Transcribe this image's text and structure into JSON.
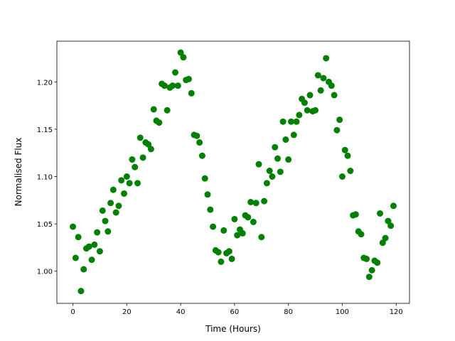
{
  "chart_data": {
    "type": "scatter",
    "x_label": "Time (Hours)",
    "y_label": "Normalised Flux",
    "x": [
      0,
      1,
      2,
      3,
      4,
      5,
      6,
      7,
      8,
      9,
      10,
      11,
      12,
      13,
      14,
      15,
      16,
      17,
      18,
      19,
      20,
      21,
      22,
      23,
      24,
      25,
      26,
      27,
      28,
      29,
      30,
      31,
      32,
      33,
      34,
      35,
      36,
      37,
      38,
      39,
      40,
      41,
      42,
      43,
      44,
      45,
      46,
      47,
      48,
      49,
      50,
      51,
      52,
      53,
      54,
      55,
      56,
      57,
      58,
      59,
      60,
      61,
      62,
      63,
      64,
      65,
      66,
      67,
      68,
      69,
      70,
      71,
      72,
      73,
      74,
      75,
      76,
      77,
      78,
      79,
      80,
      81,
      82,
      83,
      84,
      85,
      86,
      87,
      88,
      89,
      90,
      91,
      92,
      93,
      94,
      95,
      96,
      97,
      98,
      99,
      100,
      101,
      102,
      103,
      104,
      105,
      106,
      107,
      108,
      109,
      110,
      111,
      112,
      113,
      114,
      115,
      116,
      117,
      118,
      119
    ],
    "values": [
      1.047,
      1.014,
      1.036,
      0.979,
      1.002,
      1.024,
      1.026,
      1.012,
      1.028,
      1.041,
      1.021,
      1.064,
      1.053,
      1.042,
      1.072,
      1.086,
      1.062,
      1.069,
      1.096,
      1.082,
      1.1,
      1.093,
      1.118,
      1.11,
      1.093,
      1.141,
      1.12,
      1.136,
      1.134,
      1.129,
      1.171,
      1.159,
      1.157,
      1.198,
      1.196,
      1.17,
      1.194,
      1.196,
      1.21,
      1.196,
      1.231,
      1.226,
      1.202,
      1.203,
      1.188,
      1.144,
      1.143,
      1.136,
      1.122,
      1.098,
      1.081,
      1.065,
      1.047,
      1.022,
      1.02,
      1.01,
      1.043,
      1.019,
      1.021,
      1.013,
      1.055,
      1.038,
      1.044,
      1.04,
      1.059,
      1.057,
      1.073,
      1.052,
      1.072,
      1.113,
      1.036,
      1.074,
      1.093,
      1.106,
      1.1,
      1.131,
      1.119,
      1.105,
      1.158,
      1.139,
      1.118,
      1.158,
      1.144,
      1.158,
      1.165,
      1.182,
      1.178,
      1.17,
      1.186,
      1.169,
      1.17,
      1.207,
      1.191,
      1.204,
      1.225,
      1.2,
      1.196,
      1.186,
      1.149,
      1.16,
      1.1,
      1.128,
      1.122,
      1.106,
      1.059,
      1.06,
      1.042,
      1.039,
      1.014,
      1.013,
      0.994,
      1.001,
      1.011,
      1.009,
      1.061,
      1.03,
      1.035,
      1.053,
      1.048,
      1.069
    ],
    "color": "#008000",
    "xlim": [
      -5.95,
      124.95
    ],
    "xticks": [
      0,
      20,
      40,
      60,
      80,
      100,
      120
    ],
    "ylim": [
      0.966,
      1.243
    ],
    "yticks": [
      {
        "value": 1.0,
        "label": "1.00"
      },
      {
        "value": 1.05,
        "label": "1.05"
      },
      {
        "value": 1.1,
        "label": "1.10"
      },
      {
        "value": 1.15,
        "label": "1.15"
      },
      {
        "value": 1.2,
        "label": "1.20"
      }
    ]
  }
}
